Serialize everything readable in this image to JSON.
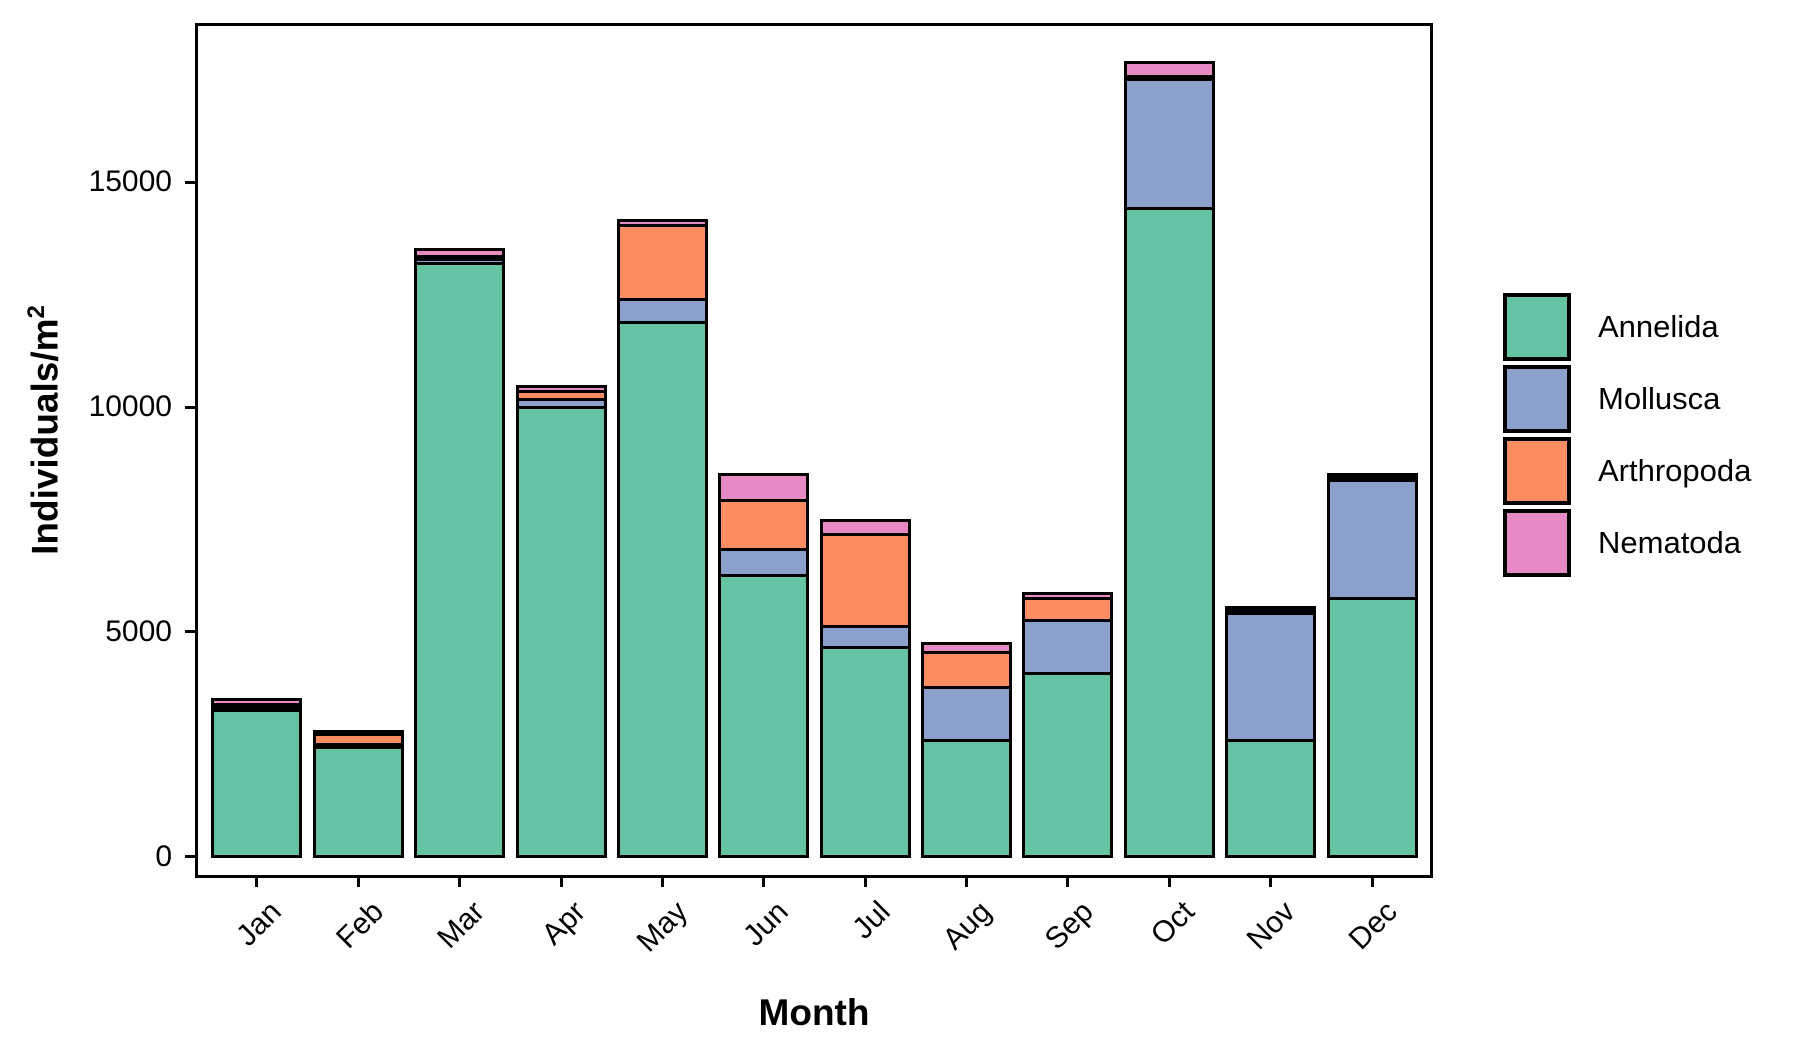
{
  "chart_data": {
    "type": "bar",
    "stacked": true,
    "title": "",
    "xlabel": "Month",
    "ylabel_base": "Individuals/m",
    "ylabel_sup": "2",
    "categories": [
      "Jan",
      "Feb",
      "Mar",
      "Apr",
      "May",
      "Jun",
      "Jul",
      "Aug",
      "Sep",
      "Oct",
      "Nov",
      "Dec"
    ],
    "series": [
      {
        "name": "Annelida",
        "color": "#66C2A5",
        "values": [
          3250,
          2420,
          13200,
          9990,
          11880,
          6260,
          4660,
          2590,
          4070,
          14420,
          2570,
          5750
        ]
      },
      {
        "name": "Mollusca",
        "color": "#8DA0CB",
        "values": [
          70,
          80,
          80,
          180,
          510,
          560,
          450,
          1180,
          1170,
          2880,
          2850,
          2630
        ]
      },
      {
        "name": "Arthropoda",
        "color": "#FC8D62",
        "values": [
          70,
          230,
          80,
          180,
          1660,
          1110,
          2050,
          770,
          490,
          50,
          50,
          50
        ]
      },
      {
        "name": "Nematoda",
        "color": "#E78AC3",
        "values": [
          110,
          50,
          140,
          100,
          110,
          570,
          310,
          210,
          120,
          320,
          80,
          80
        ]
      }
    ],
    "totals": [
      3500,
      2780,
      13500,
      10450,
      14160,
      8500,
      7470,
      4750,
      5850,
      17670,
      5550,
      8510
    ],
    "y_ticks": [
      {
        "value": 0,
        "label": "0"
      },
      {
        "value": 5000,
        "label": "5000"
      },
      {
        "value": 10000,
        "label": "10000"
      },
      {
        "value": 15000,
        "label": "15000"
      }
    ],
    "ylim": [
      0,
      18500
    ],
    "grid": false,
    "legend_position": "right",
    "legend_entries": [
      "Annelida",
      "Mollusca",
      "Arthropoda",
      "Nematoda"
    ],
    "bar_outline_color": "#000000"
  }
}
